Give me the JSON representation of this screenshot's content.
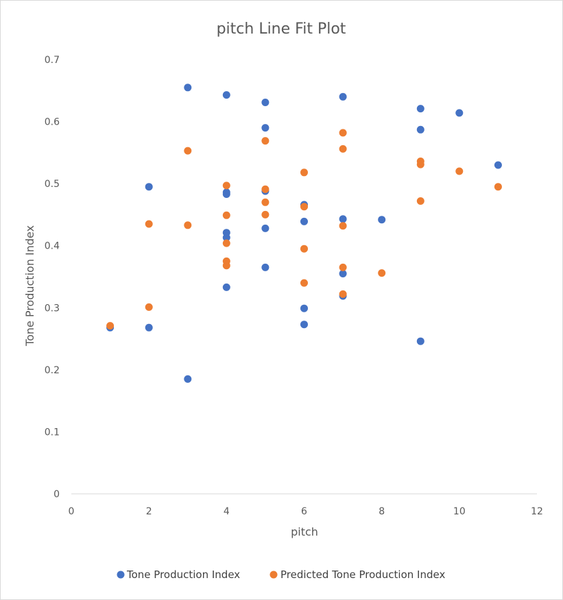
{
  "chart_data": {
    "type": "scatter",
    "title": "pitch Line Fit  Plot",
    "xlabel": "pitch",
    "ylabel": "Tone Production Index",
    "xlim": [
      0,
      12
    ],
    "ylim": [
      0,
      0.7
    ],
    "x_ticks": [
      "0",
      "2",
      "4",
      "6",
      "8",
      "10",
      "12"
    ],
    "y_ticks": [
      "0",
      "0.1",
      "0.2",
      "0.3",
      "0.4",
      "0.5",
      "0.6",
      "0.7"
    ],
    "grid": false,
    "legend": "bottom",
    "series": [
      {
        "name": "Tone Production Index",
        "color": "#4472C4",
        "points": [
          [
            1,
            0.268
          ],
          [
            2,
            0.495
          ],
          [
            2,
            0.268
          ],
          [
            3,
            0.655
          ],
          [
            3,
            0.185
          ],
          [
            4,
            0.643
          ],
          [
            4,
            0.486
          ],
          [
            4,
            0.483
          ],
          [
            4,
            0.421
          ],
          [
            4,
            0.413
          ],
          [
            4,
            0.333
          ],
          [
            5,
            0.631
          ],
          [
            5,
            0.59
          ],
          [
            5,
            0.488
          ],
          [
            5,
            0.428
          ],
          [
            5,
            0.365
          ],
          [
            6,
            0.466
          ],
          [
            6,
            0.439
          ],
          [
            6,
            0.299
          ],
          [
            6,
            0.273
          ],
          [
            7,
            0.64
          ],
          [
            7,
            0.443
          ],
          [
            7,
            0.355
          ],
          [
            7,
            0.319
          ],
          [
            8,
            0.442
          ],
          [
            9,
            0.621
          ],
          [
            9,
            0.587
          ],
          [
            9,
            0.246
          ],
          [
            10,
            0.614
          ],
          [
            11,
            0.53
          ]
        ]
      },
      {
        "name": "Predicted Tone Production Index",
        "color": "#ED7D31",
        "points": [
          [
            1,
            0.271
          ],
          [
            2,
            0.435
          ],
          [
            2,
            0.301
          ],
          [
            3,
            0.553
          ],
          [
            3,
            0.433
          ],
          [
            4,
            0.497
          ],
          [
            4,
            0.449
          ],
          [
            4,
            0.404
          ],
          [
            4,
            0.375
          ],
          [
            4,
            0.368
          ],
          [
            5,
            0.569
          ],
          [
            5,
            0.491
          ],
          [
            5,
            0.47
          ],
          [
            5,
            0.45
          ],
          [
            6,
            0.518
          ],
          [
            6,
            0.463
          ],
          [
            6,
            0.395
          ],
          [
            6,
            0.34
          ],
          [
            7,
            0.582
          ],
          [
            7,
            0.556
          ],
          [
            7,
            0.432
          ],
          [
            7,
            0.365
          ],
          [
            7,
            0.322
          ],
          [
            8,
            0.356
          ],
          [
            9,
            0.536
          ],
          [
            9,
            0.531
          ],
          [
            9,
            0.472
          ],
          [
            10,
            0.52
          ],
          [
            11,
            0.495
          ]
        ]
      }
    ]
  }
}
